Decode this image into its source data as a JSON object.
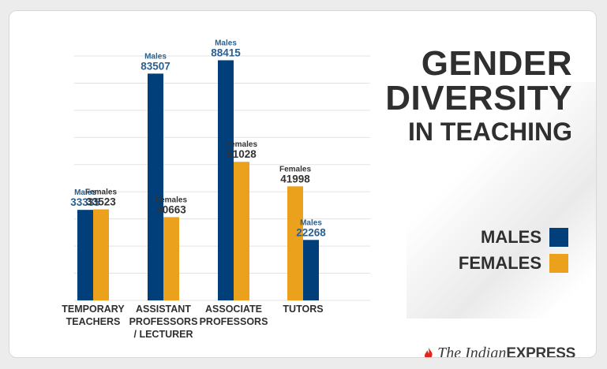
{
  "title": {
    "line1": "GENDER",
    "line2": "DIVERSITY",
    "line3": "IN TEACHING"
  },
  "legend": [
    {
      "label": "MALES",
      "color": "#003f7a"
    },
    {
      "label": "FEMALES",
      "color": "#eba11b"
    }
  ],
  "brand": {
    "part1": "The Indian",
    "part2": "EXPRESS",
    "icon": "flame-icon"
  },
  "colors": {
    "males": "#003f7a",
    "females": "#eba11b",
    "male_label": "#2a5f8f",
    "female_label": "#333333"
  },
  "chart_data": {
    "type": "bar",
    "ylim": [
      0,
      90000
    ],
    "grid": true,
    "categories": [
      [
        "TEMPORARY",
        "TEACHERS"
      ],
      [
        "ASSISTANT",
        "PROFESSORS",
        "/ LECTURER"
      ],
      [
        "ASSOCIATE",
        "PROFESSORS"
      ],
      [
        "TUTORS"
      ]
    ],
    "bars": [
      {
        "category": 0,
        "series": "Males",
        "label": "Males",
        "value": 33335
      },
      {
        "category": 0,
        "series": "Females",
        "label": "Females",
        "value": 33523
      },
      {
        "category": 1,
        "series": "Males",
        "label": "Males",
        "value": 83507
      },
      {
        "category": 1,
        "series": "Females",
        "label": "Females",
        "value": 30663
      },
      {
        "category": 2,
        "series": "Males",
        "label": "Males",
        "value": 88415
      },
      {
        "category": 2,
        "series": "Females",
        "label": "Females",
        "value": 51028
      },
      {
        "category": 3,
        "series": "Females",
        "label": "Females",
        "value": 41998
      },
      {
        "category": 3,
        "series": "Males",
        "label": "Males",
        "value": 22268
      }
    ]
  }
}
